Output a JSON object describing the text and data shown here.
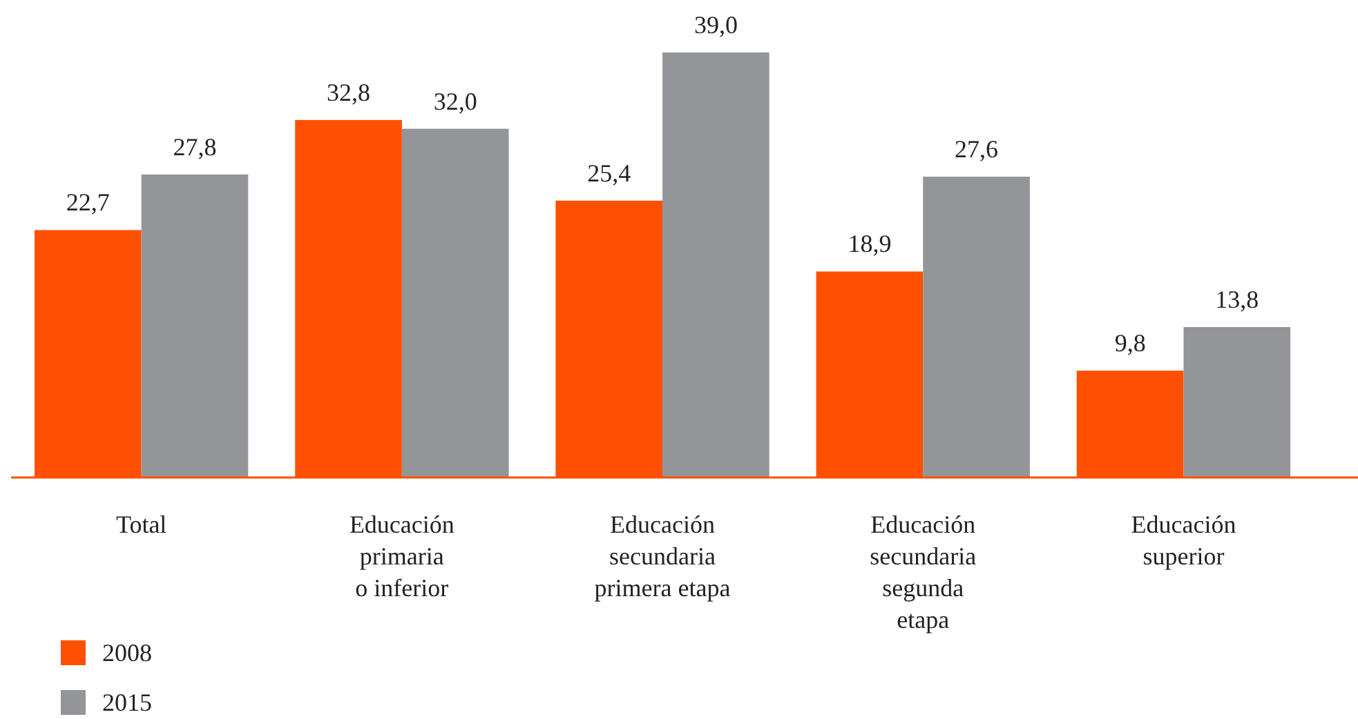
{
  "chart_data": {
    "type": "bar",
    "categories": [
      "Total",
      "Educación\nprimaria\no inferior",
      "Educación\nsecundaria\nprimera etapa",
      "Educación\nsecundaria\nsegunda\netapa",
      "Educación\nsuperior"
    ],
    "series": [
      {
        "name": "2008",
        "color": "#fe5000",
        "values": [
          22.7,
          32.8,
          25.4,
          18.9,
          9.8
        ],
        "value_labels": [
          "22,7",
          "32,8",
          "25,4",
          "18,9",
          "9,8"
        ]
      },
      {
        "name": "2015",
        "color": "#939598",
        "values": [
          27.8,
          32.0,
          39.0,
          27.6,
          13.8
        ],
        "value_labels": [
          "27,8",
          "32,0",
          "39,0",
          "27,6",
          "13,8"
        ]
      }
    ],
    "legend": "bottom left"
  }
}
